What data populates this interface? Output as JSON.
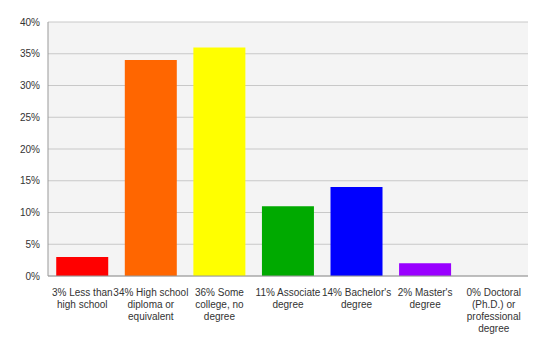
{
  "chart_data": {
    "type": "bar",
    "categories": [
      "3% Less than high school",
      "34% High school diploma or equivalent",
      "36% Some college, no degree",
      "11% Associate degree",
      "14% Bachelor's degree",
      "2% Master's degree",
      "0% Doctoral (Ph.D.) or professional degree"
    ],
    "values": [
      3,
      34,
      36,
      11,
      14,
      2,
      0
    ],
    "colors": [
      "#ff0000",
      "#ff6600",
      "#ffff00",
      "#00aa00",
      "#0000ff",
      "#9900ff",
      "#ff00ff"
    ],
    "ylim": [
      0,
      40
    ],
    "yticks": [
      {
        "value": 0,
        "label": "0%"
      },
      {
        "value": 5,
        "label": "5%"
      },
      {
        "value": 10,
        "label": "10%"
      },
      {
        "value": 15,
        "label": "15%"
      },
      {
        "value": 20,
        "label": "20%"
      },
      {
        "value": 25,
        "label": "25%"
      },
      {
        "value": 30,
        "label": "30%"
      },
      {
        "value": 35,
        "label": "35%"
      },
      {
        "value": 40,
        "label": "40%"
      }
    ],
    "grid": true
  }
}
